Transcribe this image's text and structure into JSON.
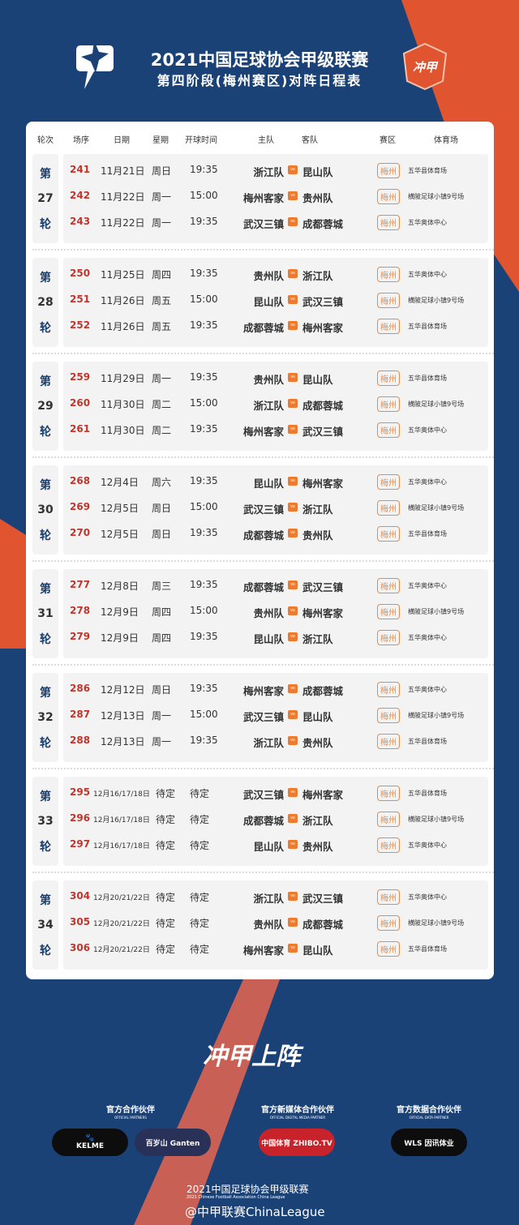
{
  "header": {
    "title": "2021中国足球协会甲级联赛",
    "subtitle": "第四阶段(梅州赛区)对阵日程表",
    "badge_text": "冲甲上阵"
  },
  "columns": [
    "轮次",
    "场序",
    "日期",
    "星期",
    "开球时间",
    "主队",
    "客队",
    "赛区",
    "体育场"
  ],
  "rounds": [
    {
      "pre": "第",
      "num": "27",
      "post": "轮",
      "matches": [
        [
          "241",
          "11月21日",
          "周日",
          "19:35",
          "浙江队",
          "昆山队",
          "梅州",
          "五华县体育场"
        ],
        [
          "242",
          "11月22日",
          "周一",
          "15:00",
          "梅州客家",
          "贵州队",
          "梅州",
          "横陂足球小镇9号场"
        ],
        [
          "243",
          "11月22日",
          "周一",
          "19:35",
          "武汉三镇",
          "成都蓉城",
          "梅州",
          "五华奥体中心"
        ]
      ]
    },
    {
      "pre": "第",
      "num": "28",
      "post": "轮",
      "matches": [
        [
          "250",
          "11月25日",
          "周四",
          "19:35",
          "贵州队",
          "浙江队",
          "梅州",
          "五华奥体中心"
        ],
        [
          "251",
          "11月26日",
          "周五",
          "15:00",
          "昆山队",
          "武汉三镇",
          "梅州",
          "横陂足球小镇9号场"
        ],
        [
          "252",
          "11月26日",
          "周五",
          "19:35",
          "成都蓉城",
          "梅州客家",
          "梅州",
          "五华县体育场"
        ]
      ]
    },
    {
      "pre": "第",
      "num": "29",
      "post": "轮",
      "matches": [
        [
          "259",
          "11月29日",
          "周一",
          "19:35",
          "贵州队",
          "昆山队",
          "梅州",
          "五华县体育场"
        ],
        [
          "260",
          "11月30日",
          "周二",
          "15:00",
          "浙江队",
          "成都蓉城",
          "梅州",
          "横陂足球小镇9号场"
        ],
        [
          "261",
          "11月30日",
          "周二",
          "19:35",
          "梅州客家",
          "武汉三镇",
          "梅州",
          "五华奥体中心"
        ]
      ]
    },
    {
      "pre": "第",
      "num": "30",
      "post": "轮",
      "matches": [
        [
          "268",
          "12月4日",
          "周六",
          "19:35",
          "昆山队",
          "梅州客家",
          "梅州",
          "五华奥体中心"
        ],
        [
          "269",
          "12月5日",
          "周日",
          "15:00",
          "武汉三镇",
          "浙江队",
          "梅州",
          "横陂足球小镇9号场"
        ],
        [
          "270",
          "12月5日",
          "周日",
          "19:35",
          "成都蓉城",
          "贵州队",
          "梅州",
          "五华县体育场"
        ]
      ]
    },
    {
      "pre": "第",
      "num": "31",
      "post": "轮",
      "matches": [
        [
          "277",
          "12月8日",
          "周三",
          "19:35",
          "成都蓉城",
          "武汉三镇",
          "梅州",
          "五华奥体中心"
        ],
        [
          "278",
          "12月9日",
          "周四",
          "15:00",
          "贵州队",
          "梅州客家",
          "梅州",
          "横陂足球小镇9号场"
        ],
        [
          "279",
          "12月9日",
          "周四",
          "19:35",
          "昆山队",
          "浙江队",
          "梅州",
          "五华奥体中心"
        ]
      ]
    },
    {
      "pre": "第",
      "num": "32",
      "post": "轮",
      "matches": [
        [
          "286",
          "12月12日",
          "周日",
          "19:35",
          "梅州客家",
          "成都蓉城",
          "梅州",
          "五华奥体中心"
        ],
        [
          "287",
          "12月13日",
          "周一",
          "15:00",
          "武汉三镇",
          "昆山队",
          "梅州",
          "横陂足球小镇9号场"
        ],
        [
          "288",
          "12月13日",
          "周一",
          "19:35",
          "浙江队",
          "贵州队",
          "梅州",
          "五华县体育场"
        ]
      ]
    },
    {
      "pre": "第",
      "num": "33",
      "post": "轮",
      "matches": [
        [
          "295",
          "12月16/17/18日",
          "待定",
          "待定",
          "武汉三镇",
          "梅州客家",
          "梅州",
          "五华县体育场"
        ],
        [
          "296",
          "12月16/17/18日",
          "待定",
          "待定",
          "成都蓉城",
          "浙江队",
          "梅州",
          "横陂足球小镇9号场"
        ],
        [
          "297",
          "12月16/17/18日",
          "待定",
          "待定",
          "昆山队",
          "贵州队",
          "梅州",
          "五华奥体中心"
        ]
      ]
    },
    {
      "pre": "第",
      "num": "34",
      "post": "轮",
      "matches": [
        [
          "304",
          "12月20/21/22日",
          "待定",
          "待定",
          "浙江队",
          "武汉三镇",
          "梅州",
          "五华奥体中心"
        ],
        [
          "305",
          "12月20/21/22日",
          "待定",
          "待定",
          "贵州队",
          "成都蓉城",
          "梅州",
          "横陂足球小镇9号场"
        ],
        [
          "306",
          "12月20/21/22日",
          "待定",
          "待定",
          "梅州客家",
          "昆山队",
          "梅州",
          "五华县体育场"
        ]
      ]
    }
  ],
  "vs_label": "vs",
  "slogan": "冲甲上阵",
  "partners": [
    {
      "title": "官方合作伙伴",
      "en": "OFFICIAL PARTNERS",
      "logos": [
        "KELME",
        "百岁山 Ganten"
      ]
    },
    {
      "title": "官方新媒体合作伙伴",
      "en": "OFFICIAL DIGITAL MEDIA PARTNER",
      "logos": [
        "中国体育 ZHIBO.TV"
      ]
    },
    {
      "title": "官方数据合作伙伴",
      "en": "OFFICIAL DATA PARTNER",
      "logos": [
        "WLS 因讯体业"
      ]
    }
  ],
  "footer": {
    "league": "2021中国足球协会甲级联赛",
    "league_en": "2021 Chinese Football Association China League",
    "weibo": "@中甲联赛ChinaLeague"
  },
  "colors": {
    "navy": "#1b4277",
    "orange": "#e0552f",
    "number_red": "#c0352c",
    "vs_orange": "#ee7a2d"
  }
}
